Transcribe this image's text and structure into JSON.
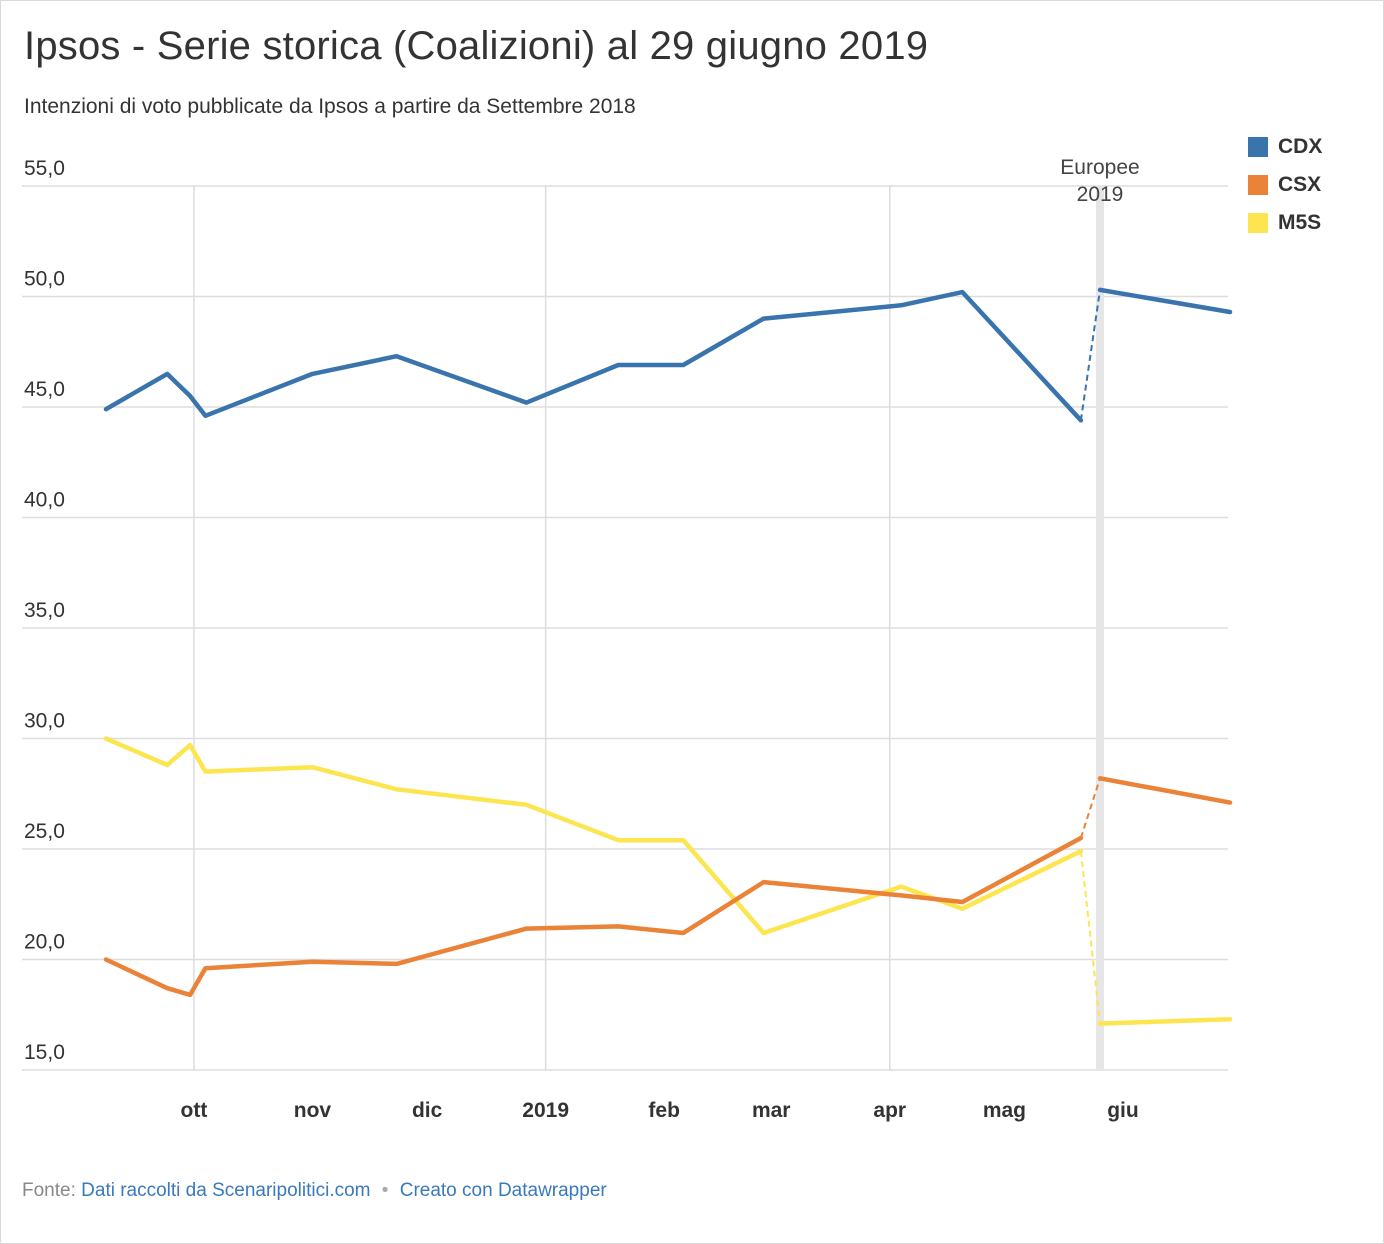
{
  "title": "Ipsos - Serie storica (Coalizioni) al 29 giugno 2019",
  "subtitle": "Intenzioni di voto pubblicate da Ipsos a partire da Settembre 2018",
  "footer": {
    "prefix": "Fonte:",
    "source_link": "Dati raccolti da Scenaripolitici.com",
    "separator": "•",
    "credit_link": "Creato con Datawrapper"
  },
  "chart_data": {
    "type": "line",
    "ylim": [
      15,
      55
    ],
    "y_ticks": [
      "55,0",
      "50,0",
      "45,0",
      "40,0",
      "35,0",
      "30,0",
      "25,0",
      "20,0",
      "15,0"
    ],
    "y_tick_values": [
      55,
      50,
      45,
      40,
      35,
      30,
      25,
      20,
      15
    ],
    "xlim": [
      "2018-09-08",
      "2019-06-29"
    ],
    "x_ticks": [
      {
        "date": "2018-10-01",
        "label": "ott"
      },
      {
        "date": "2018-11-01",
        "label": "nov"
      },
      {
        "date": "2018-12-01",
        "label": "dic"
      },
      {
        "date": "2019-01-01",
        "label": "2019"
      },
      {
        "date": "2019-02-01",
        "label": "feb"
      },
      {
        "date": "2019-03-01",
        "label": "mar"
      },
      {
        "date": "2019-04-01",
        "label": "apr"
      },
      {
        "date": "2019-05-01",
        "label": "mag"
      },
      {
        "date": "2019-06-01",
        "label": "giu"
      }
    ],
    "vertical_gridlines": [
      "2018-10-01",
      "2019-01-01",
      "2019-04-01"
    ],
    "annotation": {
      "date": "2019-05-26",
      "text_line1": "Europee",
      "text_line2": "2019"
    },
    "dashed_segment_between": [
      "2019-05-21",
      "2019-05-26"
    ],
    "legend_position": "top-right",
    "series": [
      {
        "name": "CDX",
        "color": "#3a74ad",
        "points": [
          {
            "x": "2018-09-08",
            "y": 44.9
          },
          {
            "x": "2018-09-24",
            "y": 46.5
          },
          {
            "x": "2018-09-30",
            "y": 45.5
          },
          {
            "x": "2018-10-04",
            "y": 44.6
          },
          {
            "x": "2018-11-01",
            "y": 46.5
          },
          {
            "x": "2018-11-23",
            "y": 47.3
          },
          {
            "x": "2018-12-27",
            "y": 45.2
          },
          {
            "x": "2019-01-20",
            "y": 46.9
          },
          {
            "x": "2019-02-06",
            "y": 46.9
          },
          {
            "x": "2019-02-27",
            "y": 49.0
          },
          {
            "x": "2019-04-04",
            "y": 49.6
          },
          {
            "x": "2019-04-20",
            "y": 50.2
          },
          {
            "x": "2019-05-21",
            "y": 44.4
          },
          {
            "x": "2019-05-26",
            "y": 50.3
          },
          {
            "x": "2019-06-29",
            "y": 49.3
          }
        ]
      },
      {
        "name": "CSX",
        "color": "#ea8237",
        "points": [
          {
            "x": "2018-09-08",
            "y": 20.0
          },
          {
            "x": "2018-09-24",
            "y": 18.7
          },
          {
            "x": "2018-09-30",
            "y": 18.4
          },
          {
            "x": "2018-10-04",
            "y": 19.6
          },
          {
            "x": "2018-11-01",
            "y": 19.9
          },
          {
            "x": "2018-11-23",
            "y": 19.8
          },
          {
            "x": "2018-12-27",
            "y": 21.4
          },
          {
            "x": "2019-01-20",
            "y": 21.5
          },
          {
            "x": "2019-02-06",
            "y": 21.2
          },
          {
            "x": "2019-02-27",
            "y": 23.5
          },
          {
            "x": "2019-04-04",
            "y": 22.9
          },
          {
            "x": "2019-04-20",
            "y": 22.6
          },
          {
            "x": "2019-05-21",
            "y": 25.5
          },
          {
            "x": "2019-05-26",
            "y": 28.2
          },
          {
            "x": "2019-06-29",
            "y": 27.1
          }
        ]
      },
      {
        "name": "M5S",
        "color": "#fde54f",
        "points": [
          {
            "x": "2018-09-08",
            "y": 30.0
          },
          {
            "x": "2018-09-24",
            "y": 28.8
          },
          {
            "x": "2018-09-30",
            "y": 29.7
          },
          {
            "x": "2018-10-04",
            "y": 28.5
          },
          {
            "x": "2018-11-01",
            "y": 28.7
          },
          {
            "x": "2018-11-23",
            "y": 27.7
          },
          {
            "x": "2018-12-27",
            "y": 27.0
          },
          {
            "x": "2019-01-20",
            "y": 25.4
          },
          {
            "x": "2019-02-06",
            "y": 25.4
          },
          {
            "x": "2019-02-27",
            "y": 21.2
          },
          {
            "x": "2019-04-04",
            "y": 23.3
          },
          {
            "x": "2019-04-20",
            "y": 22.3
          },
          {
            "x": "2019-05-21",
            "y": 24.9
          },
          {
            "x": "2019-05-26",
            "y": 17.1
          },
          {
            "x": "2019-06-29",
            "y": 17.3
          }
        ]
      }
    ]
  }
}
